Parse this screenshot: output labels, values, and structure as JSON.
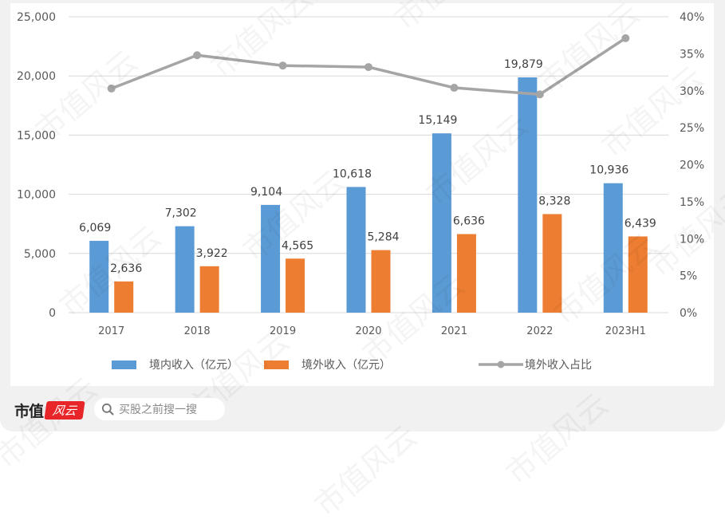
{
  "chart_data": {
    "type": "bar",
    "title": "",
    "categories": [
      "2017",
      "2018",
      "2019",
      "2020",
      "2021",
      "2022",
      "2023H1"
    ],
    "series": [
      {
        "name": "境内收入（亿元）",
        "type": "bar",
        "axis": "left",
        "color": "#5b9bd5",
        "values": [
          6069,
          7302,
          9104,
          10618,
          15149,
          19879,
          10936
        ],
        "labels": [
          "6,069",
          "7,302",
          "9,104",
          "10,618",
          "15,149",
          "19,879",
          "10,936"
        ]
      },
      {
        "name": "境外收入（亿元）",
        "type": "bar",
        "axis": "left",
        "color": "#ed7d31",
        "values": [
          2636,
          3922,
          4565,
          5284,
          6636,
          8328,
          6439
        ],
        "labels": [
          "2,636",
          "3,922",
          "4,565",
          "5,284",
          "6,636",
          "8,328",
          "6,439"
        ]
      },
      {
        "name": "境外收入占比",
        "type": "line",
        "axis": "right",
        "color": "#a5a5a5",
        "values": [
          30.3,
          34.8,
          33.4,
          33.2,
          30.4,
          29.5,
          37.1
        ]
      }
    ],
    "xlabel": "",
    "ylabel": "",
    "ylim": [
      0,
      25000
    ],
    "y2lim": [
      0,
      40
    ],
    "yticks": [
      "0",
      "5,000",
      "10,000",
      "15,000",
      "20,000",
      "25,000"
    ],
    "y2ticks": [
      "0%",
      "5%",
      "10%",
      "15%",
      "20%",
      "25%",
      "30%",
      "35%",
      "40%"
    ],
    "grid": true,
    "legend_position": "bottom"
  },
  "legend": {
    "items": [
      {
        "label": "境内收入（亿元）",
        "color": "#5b9bd5",
        "kind": "bar"
      },
      {
        "label": "境外收入（亿元）",
        "color": "#ed7d31",
        "kind": "bar"
      },
      {
        "label": "境外收入占比",
        "color": "#a5a5a5",
        "kind": "line"
      }
    ]
  },
  "footer": {
    "brand_text": "市值",
    "brand_badge": "风云",
    "search_icon": "search-icon",
    "search_placeholder": "买股之前搜一搜"
  },
  "watermark": "市值风云"
}
